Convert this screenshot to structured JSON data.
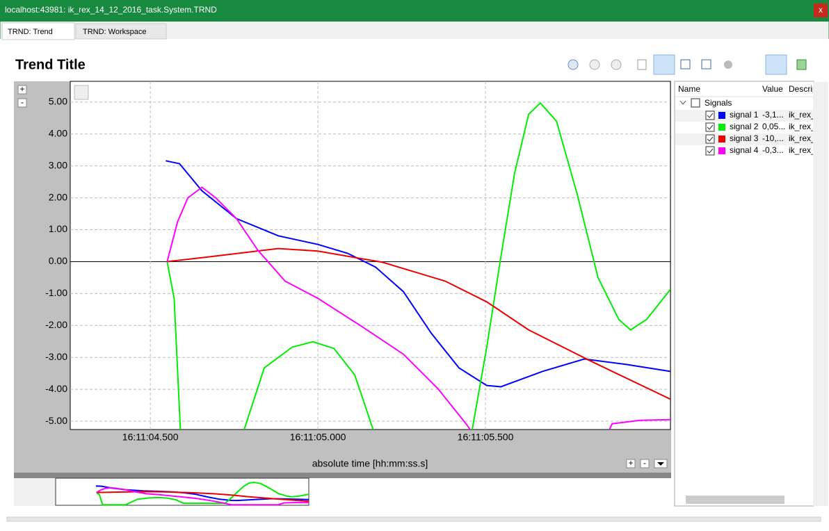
{
  "window": {
    "title": "localhost:43981: ik_rex_14_12_2016_task.System.TRND",
    "close": "x"
  },
  "tabs": [
    "TRND: Trend",
    "TRND: Workspace"
  ],
  "axis_controls": {
    "plus": "+",
    "minus": "-"
  },
  "chart_data": {
    "type": "line",
    "title": "Trend Title",
    "x_label": "absolute time [hh:mm:ss.s]",
    "xlim": [
      4.261,
      6.052
    ],
    "ylim": [
      -5.26,
      5.65
    ],
    "xticks": [
      {
        "value": 4.5,
        "label": "16:11:04.500"
      },
      {
        "value": 5.0,
        "label": "16:11:05.000"
      },
      {
        "value": 5.5,
        "label": "16:11:05.500"
      }
    ],
    "yticks": [
      {
        "value": 5,
        "label": "5.00"
      },
      {
        "value": 4,
        "label": "4.00"
      },
      {
        "value": 3,
        "label": "3.00"
      },
      {
        "value": 2,
        "label": "2.00"
      },
      {
        "value": 1,
        "label": "1.00"
      },
      {
        "value": 0,
        "label": "0.00"
      },
      {
        "value": -1,
        "label": "-1.00"
      },
      {
        "value": -2,
        "label": "-2.00"
      },
      {
        "value": -3,
        "label": "-3.00"
      },
      {
        "value": -4,
        "label": "-4.00"
      },
      {
        "value": -5,
        "label": "-5.00"
      }
    ],
    "grid": true,
    "series": [
      {
        "name": "signal 1",
        "color": "#0000ff",
        "x": [
          4.546,
          4.587,
          4.654,
          4.757,
          4.882,
          5.0,
          5.089,
          5.172,
          5.255,
          5.338,
          5.421,
          5.504,
          5.546,
          5.67,
          5.795,
          5.919,
          6.052
        ],
        "values": [
          3.16,
          3.07,
          2.22,
          1.35,
          0.81,
          0.54,
          0.26,
          -0.17,
          -0.94,
          -2.24,
          -3.33,
          -3.88,
          -3.92,
          -3.44,
          -3.05,
          -3.22,
          -3.44
        ]
      },
      {
        "name": "signal 2",
        "color": "#00ee00",
        "x": [
          4.55,
          4.571,
          4.593,
          4.757,
          4.84,
          4.923,
          4.985,
          5.048,
          5.11,
          5.166,
          5.46,
          5.504,
          5.546,
          5.587,
          5.629,
          5.664,
          5.712,
          5.774,
          5.836,
          5.898,
          5.933,
          5.981,
          6.052
        ],
        "values": [
          0,
          -1.15,
          -6,
          -6,
          -3.33,
          -2.68,
          -2.51,
          -2.72,
          -3.55,
          -5.3,
          -5.3,
          -2.68,
          0.15,
          2.77,
          4.62,
          4.97,
          4.4,
          2.11,
          -0.5,
          -1.81,
          -2.14,
          -1.81,
          -0.87
        ]
      },
      {
        "name": "signal 3",
        "color": "#ee0000",
        "x": [
          4.55,
          4.674,
          4.882,
          5.0,
          5.193,
          5.38,
          5.504,
          5.629,
          5.815,
          6.052
        ],
        "values": [
          0,
          0.15,
          0.41,
          0.33,
          -0.02,
          -0.61,
          -1.26,
          -2.14,
          -3.12,
          -4.31
        ]
      },
      {
        "name": "signal 4",
        "color": "#ff00ff",
        "x": [
          4.55,
          4.581,
          4.612,
          4.654,
          4.695,
          4.757,
          4.82,
          4.902,
          5.0,
          5.131,
          5.255,
          5.359,
          5.442,
          5.504,
          5.836,
          5.878,
          5.961,
          6.052
        ],
        "values": [
          0,
          1.24,
          2.0,
          2.33,
          2.0,
          1.35,
          0.37,
          -0.61,
          -1.15,
          -2.03,
          -2.9,
          -3.99,
          -5.08,
          -6,
          -6,
          -5.08,
          -4.97,
          -4.95
        ]
      }
    ]
  },
  "signal_table": {
    "headers": [
      "Name",
      "Value",
      "Descrip"
    ],
    "group": "Signals",
    "rows": [
      [
        "-3,1...",
        "ik_rex_"
      ],
      [
        "0,05...",
        "ik_rex_"
      ],
      [
        "-10,...",
        "ik_rex_"
      ],
      [
        "-0,3...",
        "ik_rex_"
      ]
    ]
  }
}
